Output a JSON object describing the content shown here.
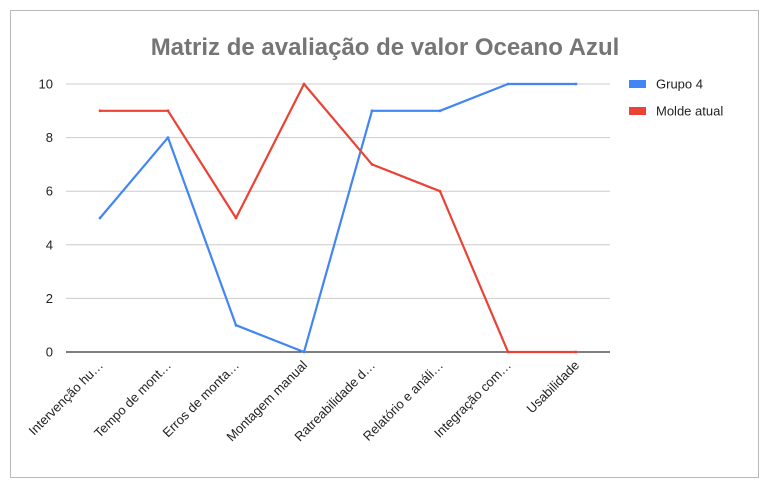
{
  "chart_data": {
    "type": "line",
    "title": "Matriz de avaliação de valor Oceano Azul",
    "xlabel": "",
    "ylabel": "",
    "categories": [
      "Intervenção hu…",
      "Tempo de mont…",
      "Erros de monta…",
      "Montagem manual",
      "Ratreabilidade d…",
      "Relatório e análi…",
      "Integração com…",
      "Usabilidade"
    ],
    "ylim": [
      0,
      10
    ],
    "yticks": [
      0,
      2,
      4,
      6,
      8,
      10
    ],
    "grid": true,
    "legend_position": "right",
    "series": [
      {
        "name": "Grupo 4",
        "color": "#4285f4",
        "values": [
          5,
          8,
          1,
          0,
          9,
          9,
          10,
          10
        ]
      },
      {
        "name": "Molde atual",
        "color": "#ea4335",
        "values": [
          9,
          9,
          5,
          10,
          7,
          6,
          0,
          0
        ]
      }
    ]
  }
}
